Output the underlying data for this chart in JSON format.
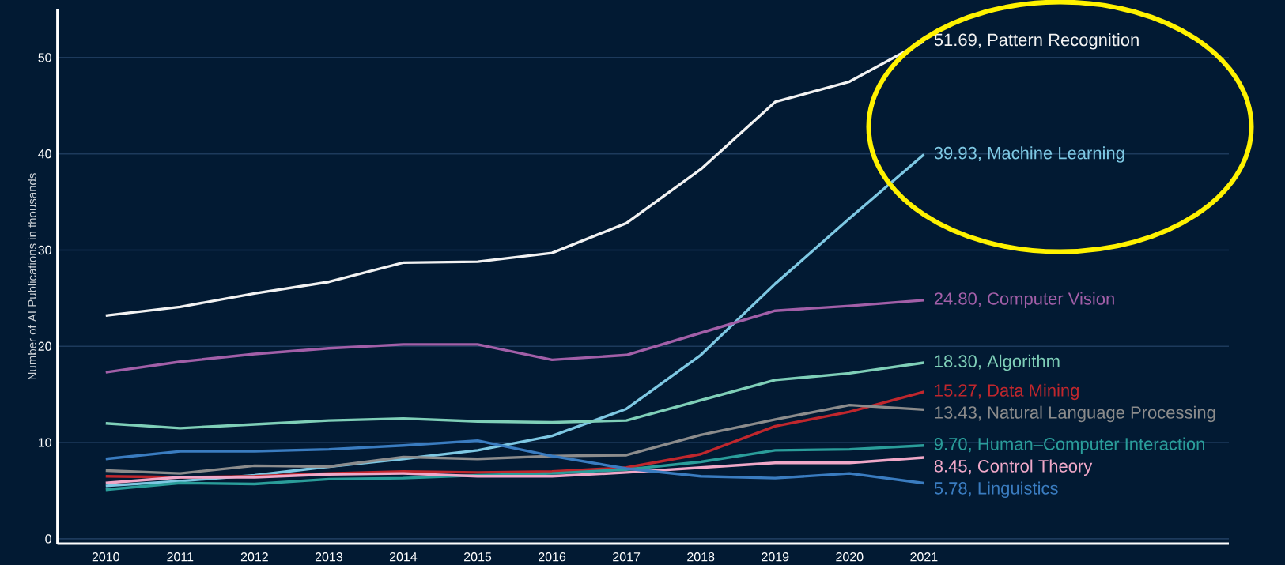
{
  "chart_data": {
    "type": "line",
    "ylabel": "Number of AI Publications in thousands",
    "categories": [
      "2010",
      "2011",
      "2012",
      "2013",
      "2014",
      "2015",
      "2016",
      "2017",
      "2018",
      "2019",
      "2020",
      "2021"
    ],
    "ylim": [
      -0.5,
      55
    ],
    "yticks": [
      0,
      10,
      20,
      30,
      40,
      50
    ],
    "grid": "y",
    "series": [
      {
        "name": "Pattern Recognition",
        "color": "#f2f2f2",
        "values": [
          23.2,
          24.1,
          25.5,
          26.7,
          28.7,
          28.8,
          29.7,
          32.8,
          38.4,
          45.4,
          47.5,
          51.69
        ],
        "value_labels": [
          null,
          null,
          null,
          null,
          null,
          null,
          null,
          null,
          null,
          null,
          null,
          "51.69,"
        ]
      },
      {
        "name": "Machine Learning",
        "color": "#7ec8e3",
        "values": [
          5.5,
          6.0,
          6.6,
          7.5,
          8.3,
          9.2,
          10.7,
          13.5,
          19.1,
          26.5,
          33.3,
          39.93
        ],
        "value_labels": [
          null,
          null,
          null,
          null,
          null,
          null,
          null,
          null,
          null,
          null,
          null,
          "39.93,"
        ]
      },
      {
        "name": "Computer Vision",
        "color": "#a25fa8",
        "values": [
          17.3,
          18.4,
          19.2,
          19.8,
          20.2,
          20.2,
          18.6,
          19.1,
          21.4,
          23.7,
          24.2,
          24.8
        ],
        "value_labels": [
          null,
          null,
          null,
          null,
          null,
          null,
          null,
          null,
          null,
          null,
          null,
          "24.80,"
        ]
      },
      {
        "name": "Algorithm",
        "color": "#7fcfb8",
        "values": [
          12.0,
          11.5,
          11.9,
          12.3,
          12.5,
          12.2,
          12.1,
          12.3,
          14.4,
          16.5,
          17.2,
          18.3
        ],
        "value_labels": [
          null,
          null,
          null,
          null,
          null,
          null,
          null,
          null,
          null,
          null,
          null,
          "18.30,"
        ]
      },
      {
        "name": "Data Mining",
        "color": "#c0272d",
        "values": [
          6.5,
          6.4,
          6.5,
          6.8,
          7.0,
          6.9,
          7.0,
          7.4,
          8.8,
          11.7,
          13.2,
          15.27
        ],
        "value_labels": [
          null,
          null,
          null,
          null,
          null,
          null,
          null,
          null,
          null,
          null,
          null,
          "15.27,"
        ]
      },
      {
        "name": "Natural Language Processing",
        "color": "#8c8c8c",
        "values": [
          7.1,
          6.8,
          7.6,
          7.5,
          8.5,
          8.3,
          8.6,
          8.7,
          10.8,
          12.4,
          13.9,
          13.43
        ],
        "value_labels": [
          null,
          null,
          null,
          null,
          null,
          null,
          null,
          null,
          null,
          null,
          null,
          "13.43,"
        ]
      },
      {
        "name": "Human–Computer Interaction",
        "color": "#2a9d9a",
        "values": [
          5.1,
          5.8,
          5.7,
          6.2,
          6.3,
          6.6,
          6.8,
          7.2,
          8.0,
          9.2,
          9.3,
          9.7
        ],
        "value_labels": [
          null,
          null,
          null,
          null,
          null,
          null,
          null,
          null,
          null,
          null,
          null,
          "9.70,"
        ]
      },
      {
        "name": "Control Theory",
        "color": "#f0a8c8",
        "values": [
          5.8,
          6.4,
          6.4,
          6.7,
          6.8,
          6.5,
          6.5,
          6.9,
          7.4,
          7.9,
          7.9,
          8.45
        ],
        "value_labels": [
          null,
          null,
          null,
          null,
          null,
          null,
          null,
          null,
          null,
          null,
          null,
          "8.45,"
        ]
      },
      {
        "name": "Linguistics",
        "color": "#3a7cc0",
        "values": [
          8.3,
          9.1,
          9.1,
          9.3,
          9.7,
          10.2,
          8.6,
          7.3,
          6.5,
          6.3,
          6.8,
          5.78
        ],
        "value_labels": [
          null,
          null,
          null,
          null,
          null,
          null,
          null,
          null,
          null,
          null,
          null,
          "5.78,"
        ]
      }
    ]
  }
}
